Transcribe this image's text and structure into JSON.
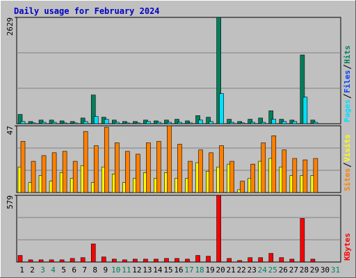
{
  "title": "Daily usage for February 2024",
  "chart_data": [
    {
      "type": "bar",
      "ylim": [
        0,
        2629
      ],
      "yticks": [
        2629
      ],
      "series": [
        {
          "name": "Pages",
          "color": "#00e0ff",
          "values": [
            55,
            20,
            35,
            35,
            20,
            20,
            55,
            180,
            110,
            35,
            20,
            20,
            55,
            35,
            35,
            35,
            20,
            90,
            55,
            745,
            35,
            20,
            35,
            35,
            110,
            55,
            55,
            657,
            35,
            null,
            null
          ]
        },
        {
          "name": "Files",
          "color": "#0040ff",
          "values": [
            null,
            null,
            null,
            null,
            null,
            null,
            null,
            null,
            null,
            null,
            null,
            null,
            null,
            null,
            null,
            null,
            null,
            null,
            null,
            null,
            null,
            null,
            null,
            null,
            null,
            null,
            null,
            null,
            null,
            null,
            null
          ]
        },
        {
          "name": "Hits",
          "color": "#00805c",
          "values": [
            230,
            55,
            90,
            90,
            70,
            55,
            140,
            710,
            160,
            90,
            55,
            55,
            90,
            70,
            90,
            110,
            70,
            200,
            160,
            2629,
            110,
            55,
            110,
            140,
            320,
            110,
            90,
            1700,
            90,
            null,
            null
          ]
        }
      ]
    },
    {
      "type": "bar",
      "ylim": [
        0,
        47
      ],
      "yticks": [
        47
      ],
      "series": [
        {
          "name": "Sites",
          "color": "#ff8000",
          "values": [
            36,
            22,
            26,
            28,
            29,
            22,
            43,
            33,
            46,
            35,
            29,
            27,
            35,
            36,
            47,
            34,
            22,
            30,
            28,
            33,
            22,
            8,
            20,
            35,
            40,
            30,
            24,
            23,
            24,
            null,
            null
          ]
        },
        {
          "name": "Visits",
          "color": "#ffff00",
          "values": [
            18,
            7,
            12,
            8,
            14,
            10,
            19,
            7,
            18,
            13,
            7,
            10,
            14,
            10,
            14,
            10,
            10,
            21,
            15,
            18,
            20,
            2,
            10,
            22,
            24,
            18,
            12,
            12,
            12,
            null,
            null
          ]
        }
      ]
    },
    {
      "type": "bar",
      "ylim": [
        0,
        579
      ],
      "yticks": [
        579
      ],
      "series": [
        {
          "name": "KBytes",
          "color": "#ff0000",
          "values": [
            57,
            19,
            19,
            19,
            19,
            31,
            38,
            157,
            44,
            25,
            19,
            25,
            25,
            25,
            31,
            31,
            25,
            57,
            50,
            579,
            31,
            13,
            38,
            38,
            75,
            38,
            25,
            378,
            25,
            null,
            null
          ]
        }
      ],
      "categories": [
        "1",
        "2",
        "3",
        "4",
        "5",
        "6",
        "7",
        "8",
        "9",
        "10",
        "11",
        "12",
        "13",
        "14",
        "15",
        "16",
        "17",
        "18",
        "19",
        "20",
        "21",
        "22",
        "23",
        "24",
        "25",
        "26",
        "27",
        "28",
        "29",
        "30",
        "31"
      ],
      "category_colors": [
        "#000000",
        "#000000",
        "#00805c",
        "#00805c",
        "#000000",
        "#000000",
        "#000000",
        "#000000",
        "#000000",
        "#00805c",
        "#00805c",
        "#000000",
        "#000000",
        "#000000",
        "#000000",
        "#000000",
        "#00805c",
        "#00805c",
        "#000000",
        "#000000",
        "#000000",
        "#000000",
        "#000000",
        "#00805c",
        "#00805c",
        "#000000",
        "#000000",
        "#000000",
        "#000000",
        "#000000",
        "#00805c"
      ]
    }
  ]
}
